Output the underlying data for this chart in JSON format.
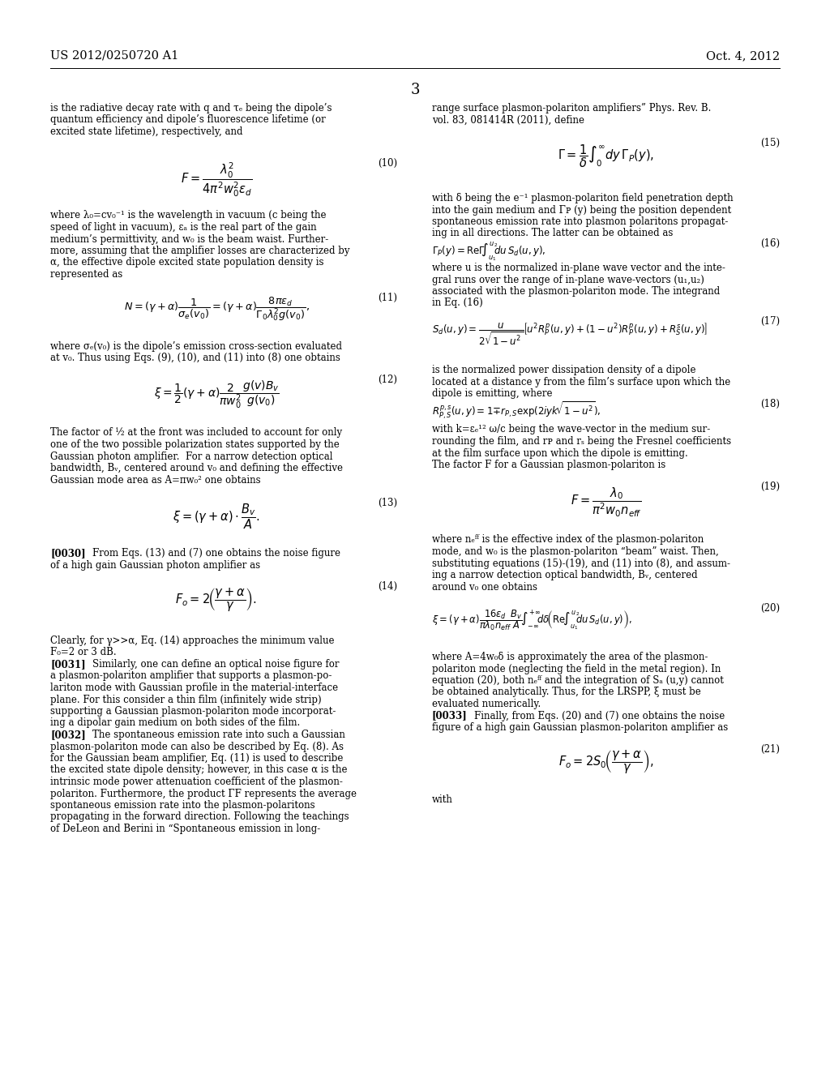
{
  "bg_color": "#ffffff",
  "text_color": "#000000",
  "header_left": "US 2012/0250720 A1",
  "header_right": "Oct. 4, 2012",
  "page_number": "3",
  "body_fs": 8.5,
  "eq_fs": 9.5,
  "header_fs": 10.5,
  "pagenum_fs": 13
}
